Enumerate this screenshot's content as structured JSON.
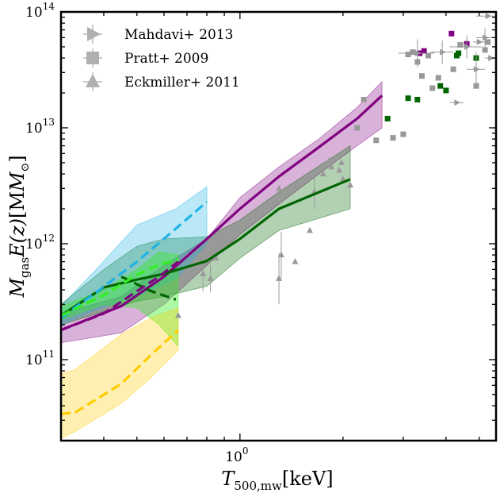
{
  "chart_data": {
    "type": "line",
    "title": "",
    "xlabel_main": "T",
    "xlabel_sub": "500,mw",
    "xlabel_unit": "[keV]",
    "ylabel_main": "M",
    "ylabel_sub": "gas",
    "ylabel_func": "E(z)",
    "ylabel_unit": "[M",
    "ylabel_unit_close": "]",
    "xscale": "log",
    "yscale": "log",
    "xlim": [
      0.3,
      5.6
    ],
    "ylim": [
      20000000000.0,
      100000000000000.0
    ],
    "x_major_ticks": [
      {
        "value": 1.0,
        "base": "10",
        "exp": "0"
      }
    ],
    "y_major_ticks": [
      {
        "value": 100000000000.0,
        "base": "10",
        "exp": "11"
      },
      {
        "value": 1000000000000.0,
        "base": "10",
        "exp": "12"
      },
      {
        "value": 10000000000000.0,
        "base": "10",
        "exp": "13"
      },
      {
        "value": 100000000000000.0,
        "base": "10",
        "exp": "14"
      }
    ],
    "legend_position": "top-left",
    "legend": [
      {
        "label": "Mahdavi+ 2013",
        "marker": "triangle-right"
      },
      {
        "label": "Pratt+ 2009",
        "marker": "square"
      },
      {
        "label": "Eckmiller+ 2011",
        "marker": "triangle-up"
      }
    ],
    "colors": {
      "purple": "#800080",
      "darkgreen": "#006400",
      "cyan": "#1eb4e6",
      "lime": "#33ee22",
      "gold": "#ffcc00",
      "grey": "#999999"
    },
    "bands": [
      {
        "name": "purple-band",
        "color": "#800080",
        "opacity": 0.3,
        "x": [
          0.3,
          0.45,
          0.6,
          0.8,
          1.0,
          1.3,
          1.7,
          2.2,
          2.6
        ],
        "lower": [
          140000000000.0,
          170000000000.0,
          300000000000.0,
          650000000000.0,
          1200000000000.0,
          2200000000000.0,
          4000000000000.0,
          7000000000000.0,
          10000000000000.0
        ],
        "upper": [
          250000000000.0,
          350000000000.0,
          650000000000.0,
          1100000000000.0,
          2500000000000.0,
          4600000000000.0,
          8000000000000.0,
          15000000000000.0,
          25000000000000.0
        ]
      },
      {
        "name": "darkgreen-band",
        "color": "#006400",
        "opacity": 0.3,
        "x": [
          0.3,
          0.4,
          0.5,
          0.6,
          0.8,
          1.0,
          1.3,
          2.1
        ],
        "lower": [
          200000000000.0,
          260000000000.0,
          320000000000.0,
          350000000000.0,
          430000000000.0,
          750000000000.0,
          1300000000000.0,
          2000000000000.0
        ],
        "upper": [
          300000000000.0,
          600000000000.0,
          950000000000.0,
          1100000000000.0,
          1150000000000.0,
          1600000000000.0,
          2800000000000.0,
          7000000000000.0
        ]
      },
      {
        "name": "cyan-band",
        "color": "#1eb4e6",
        "opacity": 0.3,
        "x": [
          0.3,
          0.38,
          0.5,
          0.65,
          0.8
        ],
        "lower": [
          200000000000.0,
          270000000000.0,
          350000000000.0,
          500000000000.0,
          1000000000000.0
        ],
        "upper": [
          290000000000.0,
          600000000000.0,
          1450000000000.0,
          2000000000000.0,
          3100000000000.0
        ]
      },
      {
        "name": "lime-band",
        "color": "#33ee22",
        "opacity": 0.4,
        "x": [
          0.3,
          0.4,
          0.5,
          0.58,
          0.66
        ],
        "lower": [
          220000000000.0,
          300000000000.0,
          280000000000.0,
          200000000000.0,
          130000000000.0
        ],
        "upper": [
          290000000000.0,
          400000000000.0,
          600000000000.0,
          850000000000.0,
          800000000000.0
        ]
      },
      {
        "name": "gold-band",
        "color": "#ffcc00",
        "opacity": 0.3,
        "x": [
          0.3,
          0.33,
          0.45,
          0.55,
          0.66
        ],
        "lower": [
          21000000000.0,
          24000000000.0,
          42000000000.0,
          70000000000.0,
          120000000000.0
        ],
        "upper": [
          75000000000.0,
          82000000000.0,
          165000000000.0,
          230000000000.0,
          280000000000.0
        ]
      }
    ],
    "series": [
      {
        "name": "purple-median",
        "color": "#800080",
        "dash": false,
        "width": 3.2,
        "x": [
          0.3,
          0.45,
          0.6,
          0.8,
          1.0,
          1.3,
          1.7,
          2.2,
          2.6
        ],
        "y": [
          180000000000.0,
          290000000000.0,
          520000000000.0,
          1100000000000.0,
          2000000000000.0,
          3800000000000.0,
          6800000000000.0,
          12000000000000.0,
          19000000000000.0
        ]
      },
      {
        "name": "darkgreen-median",
        "color": "#006400",
        "dash": false,
        "width": 3.2,
        "x": [
          0.3,
          0.4,
          0.5,
          0.6,
          0.8,
          1.0,
          1.3,
          2.1
        ],
        "y": [
          240000000000.0,
          420000000000.0,
          490000000000.0,
          550000000000.0,
          710000000000.0,
          1100000000000.0,
          2000000000000.0,
          3600000000000.0
        ],
        "offsets": []
      },
      {
        "name": "darkgreen-dashed",
        "color": "#006400",
        "dash": true,
        "width": 3.2,
        "x": [
          0.45,
          0.55,
          0.65
        ],
        "y": [
          520000000000.0,
          390000000000.0,
          330000000000.0
        ]
      },
      {
        "name": "purple-dashed",
        "color": "#800080",
        "dash": true,
        "width": 3.2,
        "x": [
          0.3,
          0.4,
          0.5,
          0.58,
          0.66
        ],
        "y": [
          180000000000.0,
          250000000000.0,
          390000000000.0,
          520000000000.0,
          700000000000.0
        ]
      },
      {
        "name": "cyan-dashed",
        "color": "#1eb4e6",
        "dash": true,
        "width": 3.2,
        "x": [
          0.3,
          0.38,
          0.5,
          0.65,
          0.8
        ],
        "y": [
          230000000000.0,
          380000000000.0,
          700000000000.0,
          1350000000000.0,
          2300000000000.0
        ]
      },
      {
        "name": "lime-dashed",
        "color": "#33ee22",
        "dash": true,
        "width": 3.2,
        "x": [
          0.3,
          0.4,
          0.5,
          0.58,
          0.66
        ],
        "y": [
          240000000000.0,
          360000000000.0,
          540000000000.0,
          660000000000.0,
          730000000000.0
        ]
      },
      {
        "name": "gold-dashed",
        "color": "#ffcc00",
        "dash": true,
        "width": 3.2,
        "x": [
          0.3,
          0.33,
          0.45,
          0.55,
          0.66
        ],
        "y": [
          34000000000.0,
          35000000000.0,
          62000000000.0,
          110000000000.0,
          180000000000.0
        ]
      }
    ],
    "scatter": [
      {
        "name": "eckmiller",
        "marker": "triangle-up",
        "color": "#999999",
        "points": [
          [
            0.78,
            550000000000.0,
            0,
            0.15
          ],
          [
            0.82,
            500000000000.0,
            0,
            0.12
          ],
          [
            0.85,
            750000000000.0,
            0,
            0
          ],
          [
            1.12,
            1800000000000.0,
            0,
            0
          ],
          [
            1.3,
            3000000000000.0,
            0,
            0
          ],
          [
            1.32,
            800000000000.0,
            0,
            0.2
          ],
          [
            1.3,
            500000000000.0,
            0,
            0.22
          ],
          [
            1.45,
            700000000000.0,
            0,
            0
          ],
          [
            1.6,
            1300000000000.0,
            0,
            0
          ],
          [
            1.65,
            2800000000000.0,
            0,
            0.15
          ],
          [
            1.75,
            4000000000000.0,
            0,
            0
          ],
          [
            1.82,
            5200000000000.0,
            0,
            0
          ],
          [
            1.85,
            4600000000000.0,
            0,
            0
          ],
          [
            1.9,
            5500000000000.0,
            0,
            0
          ],
          [
            1.95,
            4300000000000.0,
            0,
            0
          ],
          [
            1.98,
            5000000000000.0,
            0,
            0
          ],
          [
            2.0,
            3600000000000.0,
            0,
            0
          ],
          [
            2.1,
            3200000000000.0,
            0,
            0
          ],
          [
            0.66,
            240000000000.0,
            0,
            0
          ]
        ]
      },
      {
        "name": "pratt-grey",
        "marker": "square",
        "color": "#999999",
        "points": [
          [
            2.2,
            10000000000000.0
          ],
          [
            2.3,
            17500000000000.0
          ],
          [
            2.5,
            7800000000000.0
          ],
          [
            2.8,
            8200000000000.0
          ],
          [
            3.0,
            8800000000000.0
          ],
          [
            3.1,
            43000000000000.0
          ],
          [
            3.2,
            45000000000000.0
          ],
          [
            3.3,
            37000000000000.0
          ],
          [
            3.4,
            28000000000000.0
          ],
          [
            3.55,
            42000000000000.0
          ],
          [
            3.65,
            22000000000000.0
          ],
          [
            3.8,
            27000000000000.0
          ],
          [
            4.2,
            32000000000000.0
          ],
          [
            4.4,
            52000000000000.0
          ],
          [
            4.9,
            23000000000000.0
          ],
          [
            5.2,
            47000000000000.0
          ],
          [
            5.3,
            55000000000000.0
          ]
        ]
      },
      {
        "name": "pratt-green",
        "marker": "square",
        "color": "#006400",
        "points": [
          [
            2.7,
            12000000000000.0
          ],
          [
            3.1,
            18000000000000.0
          ],
          [
            3.3,
            17500000000000.0
          ],
          [
            3.85,
            23000000000000.0
          ],
          [
            4.0,
            21000000000000.0
          ],
          [
            4.3,
            42000000000000.0
          ],
          [
            4.35,
            44000000000000.0
          ],
          [
            4.9,
            40000000000000.0
          ]
        ]
      },
      {
        "name": "pratt-purple",
        "marker": "square",
        "color": "#800080",
        "points": [
          [
            3.35,
            44000000000000.0
          ],
          [
            3.45,
            46000000000000.0
          ],
          [
            4.15,
            65000000000000.0
          ],
          [
            4.6,
            53000000000000.0
          ]
        ]
      },
      {
        "name": "mahdavi",
        "marker": "triangle-right",
        "color": "#999999",
        "points": [
          [
            3.3,
            44000000000000.0,
            0.4,
            0.12
          ],
          [
            3.9,
            45000000000000.0,
            0.3,
            0.1
          ],
          [
            4.3,
            16500000000000.0,
            0.2,
            0
          ],
          [
            4.6,
            50000000000000.0,
            0.5,
            0.1
          ],
          [
            4.9,
            32000000000000.0,
            0.3,
            0.15
          ],
          [
            5.0,
            55000000000000.0,
            0.2,
            0
          ],
          [
            5.2,
            60000000000000.0,
            0.3,
            0.08
          ],
          [
            5.3,
            92000000000000.0,
            0.4,
            0
          ],
          [
            5.4,
            40000000000000.0,
            0.2,
            0
          ]
        ]
      }
    ]
  }
}
